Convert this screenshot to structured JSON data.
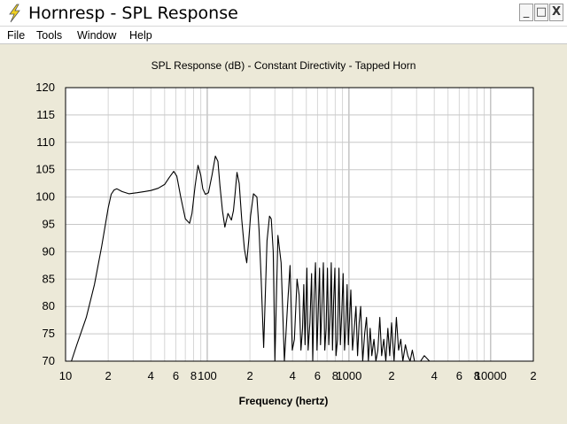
{
  "window": {
    "title": "Hornresp - SPL Response",
    "min_symbol": "_",
    "max_symbol": "□",
    "close_symbol": "X",
    "icon": "lightning-bolt-icon"
  },
  "menu": {
    "items": [
      "File",
      "Tools",
      "Window",
      "Help"
    ]
  },
  "chart_data": {
    "type": "line",
    "title": "SPL Response (dB) - Constant Directivity - Tapped Horn",
    "xlabel": "Frequency (hertz)",
    "ylabel": "",
    "x_scale": "log",
    "xlim": [
      10,
      20000
    ],
    "ylim": [
      70,
      120
    ],
    "y_ticks": [
      70,
      75,
      80,
      85,
      90,
      95,
      100,
      105,
      110,
      115,
      120
    ],
    "x_ticks": [
      {
        "value": 10,
        "label": "10"
      },
      {
        "value": 20,
        "label": "2"
      },
      {
        "value": 40,
        "label": "4"
      },
      {
        "value": 60,
        "label": "6"
      },
      {
        "value": 80,
        "label": "8"
      },
      {
        "value": 100,
        "label": "100"
      },
      {
        "value": 200,
        "label": "2"
      },
      {
        "value": 400,
        "label": "4"
      },
      {
        "value": 600,
        "label": "6"
      },
      {
        "value": 800,
        "label": "8"
      },
      {
        "value": 1000,
        "label": "1000"
      },
      {
        "value": 2000,
        "label": "2"
      },
      {
        "value": 4000,
        "label": "4"
      },
      {
        "value": 6000,
        "label": "6"
      },
      {
        "value": 8000,
        "label": "8"
      },
      {
        "value": 10000,
        "label": "10000"
      },
      {
        "value": 20000,
        "label": "2"
      }
    ],
    "grid": true,
    "line_color": "#000000",
    "series": [
      {
        "x": [
          11,
          12,
          14,
          16,
          18,
          20,
          21,
          22,
          23,
          25,
          28,
          32,
          36,
          40,
          45,
          50,
          54,
          58,
          61,
          65,
          70,
          75,
          78,
          82,
          86,
          90,
          93,
          97,
          102,
          108,
          114,
          119,
          123,
          128,
          133,
          140,
          148,
          153,
          157,
          162,
          168,
          175,
          183,
          190,
          196,
          202,
          212,
          224,
          232,
          240,
          250,
          264,
          275,
          283,
          292,
          300,
          315,
          332,
          350,
          368,
          384,
          398,
          412,
          430,
          445,
          458,
          470,
          480,
          490,
          505,
          515,
          530,
          545,
          555,
          568,
          580,
          595,
          605,
          620,
          630,
          645,
          660,
          675,
          690,
          705,
          720,
          735,
          750,
          765,
          780,
          795,
          810,
          830,
          850,
          870,
          890,
          910,
          930,
          950,
          970,
          990,
          1010,
          1030,
          1060,
          1090,
          1120,
          1150,
          1180,
          1210,
          1250,
          1290,
          1330,
          1370,
          1410,
          1450,
          1500,
          1550,
          1600,
          1650,
          1700,
          1760,
          1820,
          1880,
          1940,
          2000,
          2080,
          2160,
          2240,
          2320,
          2400,
          2500,
          2600,
          2700,
          2800,
          2900,
          3000,
          3200,
          3400,
          3700
        ],
        "y": [
          70,
          73,
          78,
          84,
          91,
          98,
          100.5,
          101.3,
          101.5,
          101,
          100.6,
          100.8,
          101,
          101.2,
          101.6,
          102.3,
          103.6,
          104.7,
          103.8,
          100,
          96,
          95.2,
          97,
          102,
          105.8,
          104,
          101.5,
          100.5,
          100.8,
          104,
          107.5,
          106.5,
          102,
          97.5,
          94.5,
          97,
          95.8,
          97.5,
          100.5,
          104.5,
          102.5,
          96,
          90.5,
          88,
          92,
          96.5,
          100.6,
          100,
          94,
          85,
          72.5,
          92,
          96.5,
          96,
          90,
          70,
          93,
          88,
          70,
          80,
          87.5,
          72,
          74,
          85,
          82,
          72,
          76,
          84,
          73,
          87,
          72,
          77,
          86,
          70,
          82,
          88,
          72,
          78,
          87,
          73,
          80,
          88,
          72,
          76,
          87,
          73,
          78,
          88,
          72,
          81,
          87,
          71,
          74,
          87,
          73,
          79,
          86,
          72,
          76,
          84,
          73,
          78,
          83,
          72,
          76,
          80,
          71,
          77,
          80,
          70,
          75,
          78,
          70,
          76,
          71,
          74,
          70,
          72,
          78,
          71,
          74,
          70,
          76,
          71,
          77,
          70,
          78,
          72,
          74,
          70,
          73,
          71,
          70,
          72,
          70,
          70,
          70,
          71,
          70
        ]
      }
    ]
  }
}
